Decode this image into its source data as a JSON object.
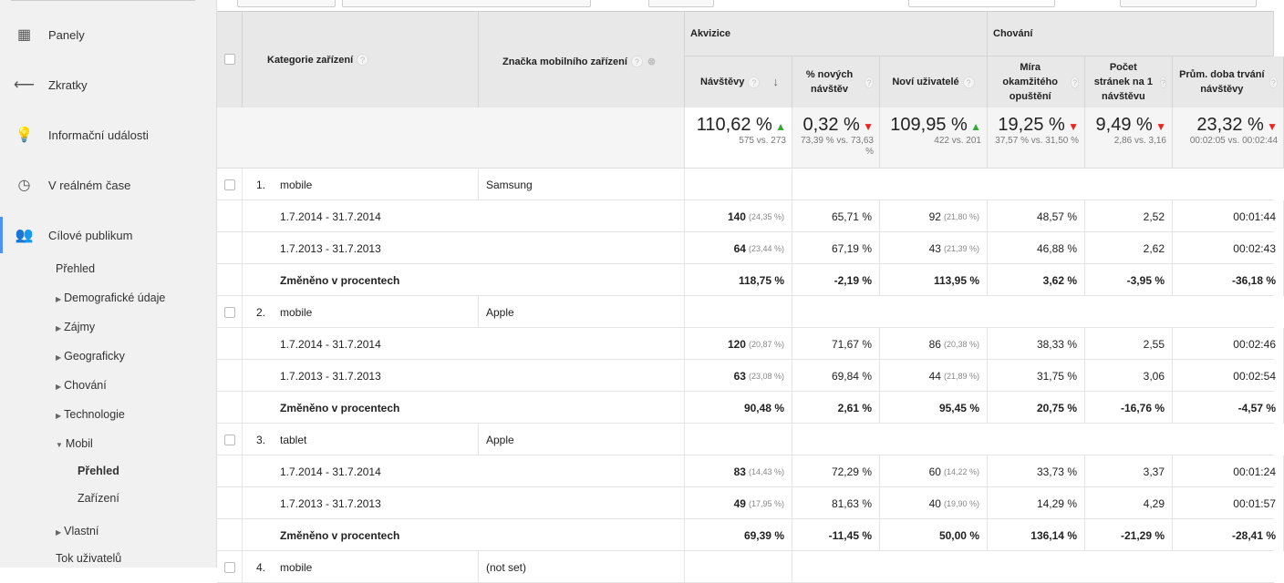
{
  "sidebar": {
    "nav": [
      {
        "label": "Panely",
        "icon": "grid-icon",
        "glyph": "▦"
      },
      {
        "label": "Zkratky",
        "icon": "shortcut-arrow-icon",
        "glyph": "⟵"
      },
      {
        "label": "Informační události",
        "icon": "lightbulb-icon",
        "glyph": "💡"
      },
      {
        "label": "V reálném čase",
        "icon": "clock-icon",
        "glyph": "◷"
      },
      {
        "label": "Cílové publikum",
        "icon": "people-icon",
        "glyph": "👥"
      }
    ],
    "sub": [
      {
        "label": "Přehled",
        "tri": ""
      },
      {
        "label": "Demografické údaje",
        "tri": "▶"
      },
      {
        "label": "Zájmy",
        "tri": "▶"
      },
      {
        "label": "Geograficky",
        "tri": "▶"
      },
      {
        "label": "Chování",
        "tri": "▶"
      },
      {
        "label": "Technologie",
        "tri": "▶"
      },
      {
        "label": "Mobil",
        "tri": "▼"
      },
      {
        "label": "Přehled",
        "tri": ""
      },
      {
        "label": "Zařízení",
        "tri": ""
      },
      {
        "label": "Vlastní",
        "tri": "▶"
      },
      {
        "label": "Tok uživatelů",
        "tri": ""
      }
    ]
  },
  "table": {
    "col_category": "Kategorie zařízení",
    "col_brand": "Značka mobilního zařízení",
    "group_acq": "Akvizice",
    "group_beh": "Chování",
    "metrics": [
      "Návštěvy",
      "% nových návštěv",
      "Noví uživatelé",
      "Míra okamžitého opuštění",
      "Počet stránek na 1 návštěvu",
      "Prům. doba trvání návštěvy"
    ],
    "summary": [
      {
        "big": "110,62 %",
        "dir": "up",
        "sub": "575 vs. 273"
      },
      {
        "big": "0,32 %",
        "dir": "down",
        "sub": "73,39 % vs. 73,63 %"
      },
      {
        "big": "109,95 %",
        "dir": "up",
        "sub": "422 vs. 201"
      },
      {
        "big": "19,25 %",
        "dir": "down",
        "sub": "37,57 % vs. 31,50 %"
      },
      {
        "big": "9,49 %",
        "dir": "down",
        "sub": "2,86 vs. 3,16"
      },
      {
        "big": "23,32 %",
        "dir": "down",
        "sub": "00:02:05 vs. 00:02:44"
      }
    ],
    "change_label": "Změněno v procentech",
    "groups": [
      {
        "num": "1.",
        "category": "mobile",
        "brand": "Samsung",
        "rows": [
          {
            "period": "1.7.2014 - 31.7.2014",
            "v": "140",
            "vp": "(24,35 %)",
            "n": "65,71 %",
            "u": "92",
            "up": "(21,80 %)",
            "b": "48,57 %",
            "p": "2,52",
            "d": "00:01:44"
          },
          {
            "period": "1.7.2013 - 31.7.2013",
            "v": "64",
            "vp": "(23,44 %)",
            "n": "67,19 %",
            "u": "43",
            "up": "(21,39 %)",
            "b": "46,88 %",
            "p": "2,62",
            "d": "00:02:43"
          }
        ],
        "change": [
          "118,75 %",
          "-2,19 %",
          "113,95 %",
          "3,62 %",
          "-3,95 %",
          "-36,18 %"
        ]
      },
      {
        "num": "2.",
        "category": "mobile",
        "brand": "Apple",
        "rows": [
          {
            "period": "1.7.2014 - 31.7.2014",
            "v": "120",
            "vp": "(20,87 %)",
            "n": "71,67 %",
            "u": "86",
            "up": "(20,38 %)",
            "b": "38,33 %",
            "p": "2,55",
            "d": "00:02:46"
          },
          {
            "period": "1.7.2013 - 31.7.2013",
            "v": "63",
            "vp": "(23,08 %)",
            "n": "69,84 %",
            "u": "44",
            "up": "(21,89 %)",
            "b": "31,75 %",
            "p": "3,06",
            "d": "00:02:54"
          }
        ],
        "change": [
          "90,48 %",
          "2,61 %",
          "95,45 %",
          "20,75 %",
          "-16,76 %",
          "-4,57 %"
        ]
      },
      {
        "num": "3.",
        "category": "tablet",
        "brand": "Apple",
        "rows": [
          {
            "period": "1.7.2014 - 31.7.2014",
            "v": "83",
            "vp": "(14,43 %)",
            "n": "72,29 %",
            "u": "60",
            "up": "(14,22 %)",
            "b": "33,73 %",
            "p": "3,37",
            "d": "00:01:24"
          },
          {
            "period": "1.7.2013 - 31.7.2013",
            "v": "49",
            "vp": "(17,95 %)",
            "n": "81,63 %",
            "u": "40",
            "up": "(19,90 %)",
            "b": "14,29 %",
            "p": "4,29",
            "d": "00:01:57"
          }
        ],
        "change": [
          "69,39 %",
          "-11,45 %",
          "50,00 %",
          "136,14 %",
          "-21,29 %",
          "-28,41 %"
        ]
      },
      {
        "num": "4.",
        "category": "mobile",
        "brand": "(not set)",
        "rows": [],
        "change": []
      }
    ]
  }
}
